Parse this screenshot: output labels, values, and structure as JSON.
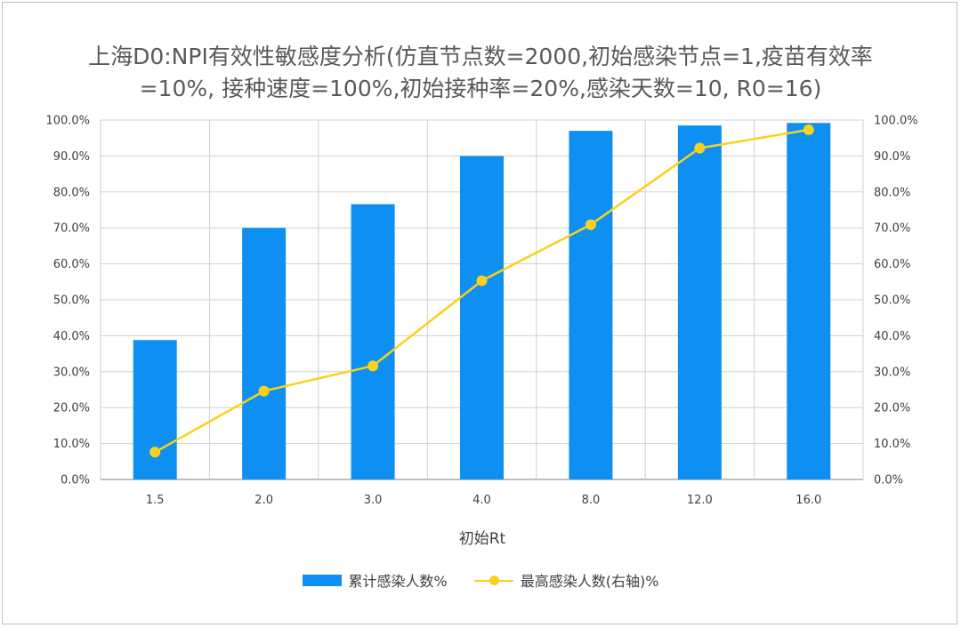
{
  "title_line1": "上海D0:NPI有效性敏感度分析(仿直节点数=2000,初始感染节点=1,疫苗有效率",
  "title_line2": "=10%, 接种速度=100%,初始接种率=20%,感染天数=10, R0=16)",
  "colors": {
    "bar": "#0e8ff2",
    "line": "#fad11c",
    "grid": "#d0d0d0",
    "axis": "#7f7f7f"
  },
  "legend": {
    "bar_label": "累计感染人数%",
    "line_label": "最高感染人数(右轴)%",
    "position": "bottom"
  },
  "chart_data": {
    "type": "bar",
    "categories": [
      "1.5",
      "2.0",
      "3.0",
      "4.0",
      "8.0",
      "12.0",
      "16.0"
    ],
    "xlabel": "初始Rt",
    "ylim": [
      0,
      100
    ],
    "y_ticks": [
      "0.0%",
      "10.0%",
      "20.0%",
      "30.0%",
      "40.0%",
      "50.0%",
      "60.0%",
      "70.0%",
      "80.0%",
      "90.0%",
      "100.0%"
    ],
    "y2lim": [
      0,
      100
    ],
    "y2_ticks": [
      "0.0%",
      "10.0%",
      "20.0%",
      "30.0%",
      "40.0%",
      "50.0%",
      "60.0%",
      "70.0%",
      "80.0%",
      "90.0%",
      "100.0%"
    ],
    "grid": true,
    "series": [
      {
        "name": "累计感染人数%",
        "type": "bar",
        "axis": "left",
        "values": [
          38.8,
          70.0,
          76.6,
          90.0,
          97.0,
          98.5,
          99.2
        ]
      },
      {
        "name": "最高感染人数(右轴)%",
        "type": "line",
        "axis": "right",
        "values": [
          7.6,
          24.6,
          31.6,
          55.3,
          70.9,
          92.2,
          97.3
        ]
      }
    ]
  }
}
